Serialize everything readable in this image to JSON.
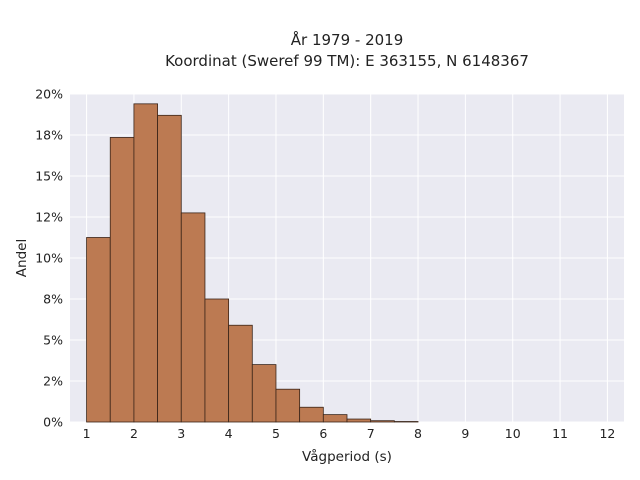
{
  "chart_data": {
    "type": "bar",
    "title_line1": "År 1979 - 2019",
    "title_line2": "Koordinat (Sweref 99 TM): E 363155, N 6148367",
    "xlabel": "Vågperiod (s)",
    "ylabel": "Andel",
    "bin_edges": [
      1.0,
      1.5,
      2.0,
      2.5,
      3.0,
      3.5,
      4.0,
      4.5,
      5.0,
      5.5,
      6.0,
      6.5,
      7.0,
      7.5,
      8.0
    ],
    "values": [
      0.1125,
      0.1735,
      0.194,
      0.187,
      0.1275,
      0.075,
      0.059,
      0.035,
      0.02,
      0.009,
      0.0045,
      0.0018,
      0.0008,
      0.0003
    ],
    "xlim": [
      0.65,
      12.35
    ],
    "ylim": [
      0,
      0.2
    ],
    "xticks": [
      1,
      2,
      3,
      4,
      5,
      6,
      7,
      8,
      9,
      10,
      11,
      12
    ],
    "xtick_labels": [
      "1",
      "2",
      "3",
      "4",
      "5",
      "6",
      "7",
      "8",
      "9",
      "10",
      "11",
      "12"
    ],
    "yticks": [
      0,
      0.025,
      0.05,
      0.075,
      0.1,
      0.125,
      0.15,
      0.175,
      0.2
    ],
    "ytick_labels": [
      "0%",
      "2%",
      "5%",
      "8%",
      "10%",
      "12%",
      "15%",
      "18%",
      "20%"
    ],
    "grid": true,
    "colors": {
      "bar": "#bc7a52",
      "bar_edge": "#3a2418",
      "plot_background": "#eaeaf2",
      "grid": "#ffffff"
    }
  }
}
